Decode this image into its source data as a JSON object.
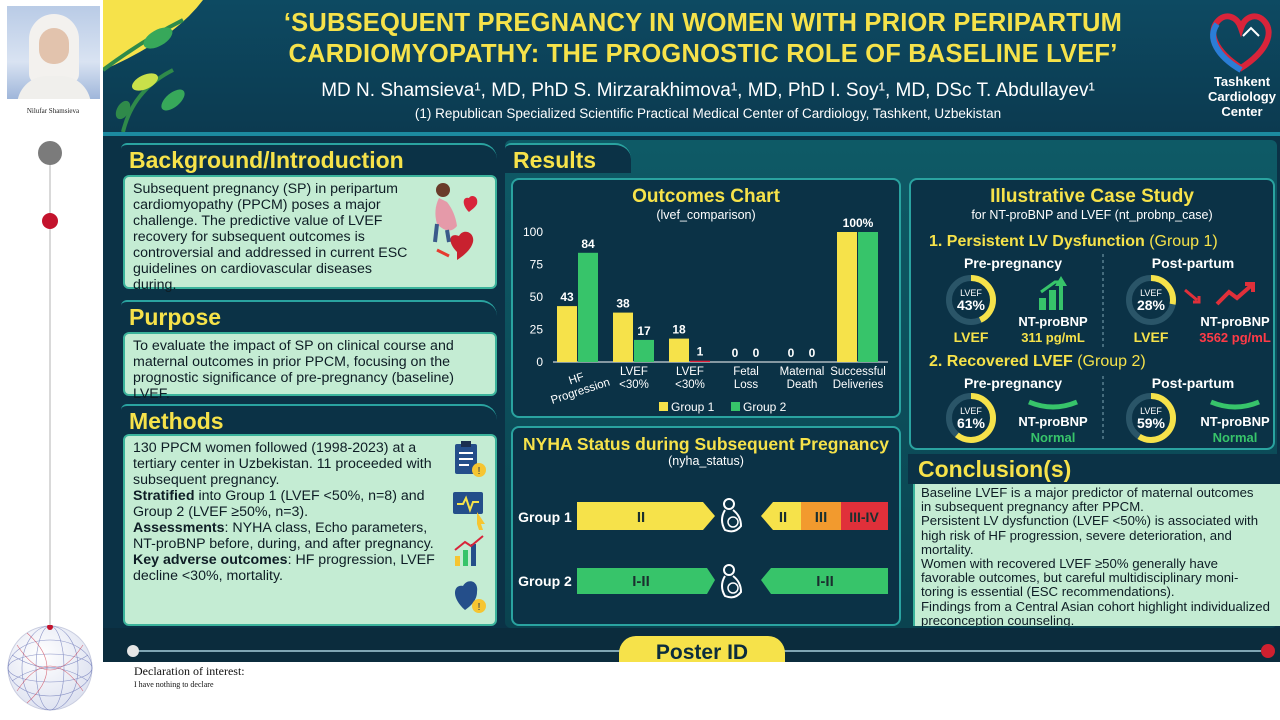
{
  "presenter": {
    "name": "Nilufar Shamsieva"
  },
  "header": {
    "title_line1": "‘SUBSEQUENT PREGNANCY IN WOMEN WITH PRIOR PERIPARTUM",
    "title_line2": "CARDIOMYOPATHY: THE PROGNOSTIC ROLE OF BASELINE LVEF’",
    "authors": "MD N. Shamsieva¹, MD, PhD S. Mirzarakhimova¹, MD, PhD I. Soy¹, MD, DSc T. Abdullayev¹",
    "affiliation": "(1) Republican Specialized Scientific Practical Medical Center of Cardiology, Tashkent, Uzbekistan",
    "logo_line1": "Tashkent",
    "logo_line2": "Cardiology",
    "logo_line3": "Center"
  },
  "background": {
    "heading": "Background/Introduction",
    "text": "Subsequent pregnancy (SP) in peripartum cardiomyopathy (PPCM) poses a major challenge. The predictive value of LVEF recovery for subsequent outcomes is controversial and addressed in current ESC guidelines on cardiovascular diseases during."
  },
  "purpose": {
    "heading": "Purpose",
    "text": "To evaluate the impact of SP on clinical course and maternal outcomes in prior PPCM, focusing on the prognostic significance of pre-pregnancy (baseline) LVEF."
  },
  "methods": {
    "heading": "Methods",
    "p1": "130 PPCM women followed (1998-2023) at a tertiary center in Uzbekistan. 11 proceeded with subsequent pregnancy.",
    "p2_bold": "Stratified",
    "p2": " into Group 1 (LVEF <50%, n=8) and Group 2 (LVEF ≥50%, n=3).",
    "p3_bold": "Assessments",
    "p3": ": NYHA class, Echo parameters, NT-proBNP before, during, and after pregnancy.",
    "p4_bold": "Key adverse outcomes",
    "p4": ": HF progression, LVEF decline <30%, mortality."
  },
  "results": {
    "heading": "Results"
  },
  "outcomes": {
    "title": "Outcomes Chart",
    "subtitle": "(lvef_comparison)"
  },
  "chart_data": {
    "type": "bar",
    "categories": [
      "HF Progression",
      "LVEF <30%",
      "LVEF <30%",
      "Fetal Loss",
      "Maternal Death",
      "Successful Deliveries"
    ],
    "category_lines": [
      [
        "HF",
        "Progression"
      ],
      [
        "LVEF",
        "<30%"
      ],
      [
        "LVEF",
        "<30%"
      ],
      [
        "Fetal",
        "Loss"
      ],
      [
        "Maternal",
        "Death"
      ],
      [
        "Successful",
        "Deliveries"
      ]
    ],
    "series": [
      {
        "name": "Group 1",
        "values": [
          43,
          38,
          18,
          0,
          0,
          100
        ],
        "color": "#f6e24a"
      },
      {
        "name": "Group 2",
        "values": [
          84,
          17,
          1,
          0,
          0,
          100
        ],
        "color": "#37c46a"
      }
    ],
    "data_labels": [
      [
        "43",
        "84"
      ],
      [
        "38",
        "17"
      ],
      [
        "18",
        "1"
      ],
      [
        "0",
        "0"
      ],
      [
        "0",
        "0"
      ],
      [
        "100%",
        ""
      ]
    ],
    "highlight_color": "#e0203a",
    "ylim": [
      0,
      100
    ],
    "yticks": [
      0,
      25,
      50,
      75,
      100
    ],
    "grid": false,
    "legend": "bottom"
  },
  "nyha": {
    "title": "NYHA Status during Subsequent Pregnancy",
    "subtitle": "(nyha_status)",
    "group1_label": "Group 1",
    "group1_pre": "II",
    "group1_post": [
      "II",
      "III",
      "III-IV"
    ],
    "group2_label": "Group 2",
    "group2_pre": "I-II",
    "group2_post": "I-II"
  },
  "case": {
    "title": "Illustrative Case Study",
    "subtitle": "for NT-proBNP and LVEF (nt_probnp_case)",
    "case1_heading": "1. Persistent LV Dysfunction",
    "case1_group": " (Group 1)",
    "case2_heading": "2. Recovered LVEF",
    "case2_group": " (Group 2)",
    "pre_label": "Pre-pregnancy",
    "post_label": "Post-partum",
    "lvef_small": "LVEF",
    "lvef_label": "LVEF",
    "ntprobnp_label": "NT-proBNP",
    "c1_pre_lvef": "43%",
    "c1_pre_bnp": "311 pg/mL",
    "c1_post_lvef": "28%",
    "c1_post_bnp": "3562 pg/mL",
    "c2_pre_lvef": "61%",
    "c2_pre_bnp": "Normal",
    "c2_post_lvef": "59%",
    "c2_post_bnp": "Normal",
    "c1_pre_fill": 0.43,
    "c1_post_fill": 0.28,
    "c2_pre_fill": 0.61,
    "c2_post_fill": 0.59
  },
  "conclusion": {
    "heading": "Conclusion(s)",
    "lines": [
      "Baseline LVEF is a major predictor of maternal outcomes",
      "in subsequent pregnancy after PPCM.",
      "Persistent LV dysfunction (LVEF <50%) is associated with",
      "high risk of HF progression, severe deterioration, and",
      "mortality.",
      "Women with recovered LVEF ≥50% generally have",
      "favorable outcomes, but careful multidisciplinary moni-",
      "toring is essential (ESC recommendations).",
      "Findings from a Central Asian cohort highlight individualized",
      "preconception counseling."
    ]
  },
  "footer": {
    "poster_id": "Poster ID"
  },
  "declaration": {
    "title": "Declaration of interest:",
    "text": "I have nothing to declare"
  }
}
